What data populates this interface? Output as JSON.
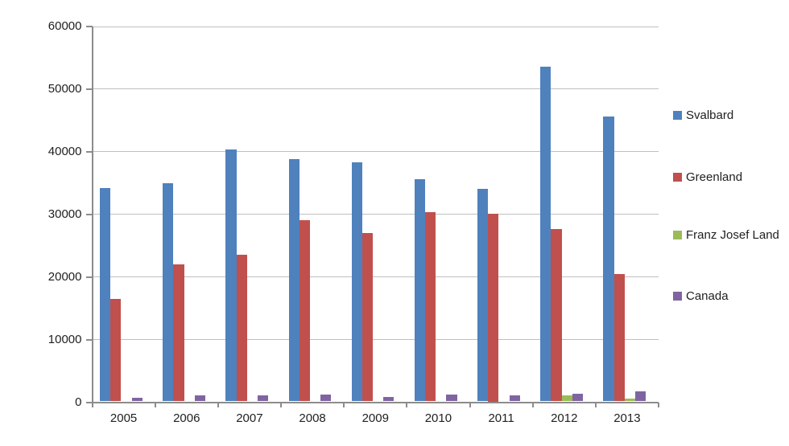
{
  "chart_data": {
    "type": "bar",
    "title": "",
    "xlabel": "",
    "ylabel": "",
    "categories": [
      "2005",
      "2006",
      "2007",
      "2008",
      "2009",
      "2010",
      "2011",
      "2012",
      "2013"
    ],
    "series": [
      {
        "name": "Svalbard",
        "color": "#4F81BD",
        "values": [
          34100,
          34800,
          40200,
          38700,
          38200,
          35500,
          33900,
          53400,
          45500
        ]
      },
      {
        "name": "Greenland",
        "color": "#C0504D",
        "values": [
          16300,
          21900,
          23400,
          28900,
          26900,
          30200,
          30000,
          27500,
          20300
        ]
      },
      {
        "name": "Franz Josef Land",
        "color": "#9BBB59",
        "values": [
          0,
          0,
          0,
          0,
          0,
          0,
          0,
          900,
          450
        ]
      },
      {
        "name": "Canada",
        "color": "#8064A2",
        "values": [
          600,
          1000,
          1000,
          1150,
          700,
          1150,
          1000,
          1200,
          1600
        ]
      }
    ],
    "ylim": [
      0,
      60000
    ],
    "ytick_interval": 10000,
    "ytick_labels": [
      "0",
      "10000",
      "20000",
      "30000",
      "40000",
      "50000",
      "60000"
    ],
    "grid": true,
    "legend_position": "right",
    "gridline_color": "#bfbfbf",
    "axis_color": "#8c8c8c",
    "text_color": "#1f1f1f",
    "background_color": "#ffffff"
  }
}
